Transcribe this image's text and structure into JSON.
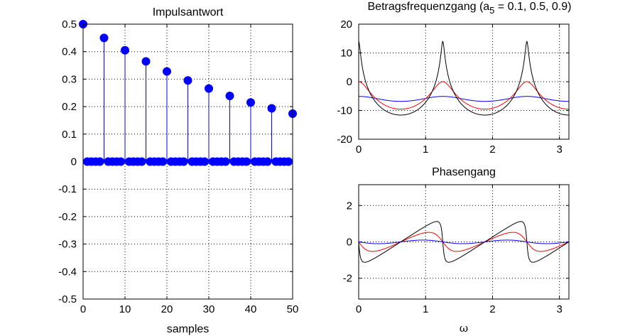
{
  "chart_data": [
    {
      "type": "stem",
      "title": "Impulsantwort",
      "xlabel": "samples",
      "ylabel": "",
      "xlim": [
        0,
        50
      ],
      "ylim": [
        -0.5,
        0.5
      ],
      "xticks": [
        0,
        10,
        20,
        30,
        40,
        50
      ],
      "yticks": [
        -0.5,
        -0.4,
        -0.3,
        -0.2,
        -0.1,
        0,
        0.1,
        0.2,
        0.3,
        0.4,
        0.5
      ],
      "ytick_labels": [
        "-0.5",
        "-0.4",
        "-0.3",
        "-0.2",
        "-0.1",
        "0",
        "0.1",
        "0.2",
        "0.3",
        "0.4",
        "0.5"
      ],
      "grid": true,
      "color": "#0000ff",
      "x": [
        0,
        1,
        2,
        3,
        4,
        5,
        6,
        7,
        8,
        9,
        10,
        11,
        12,
        13,
        14,
        15,
        16,
        17,
        18,
        19,
        20,
        21,
        22,
        23,
        24,
        25,
        26,
        27,
        28,
        29,
        30,
        31,
        32,
        33,
        34,
        35,
        36,
        37,
        38,
        39,
        40,
        41,
        42,
        43,
        44,
        45,
        46,
        47,
        48,
        49,
        50
      ],
      "values": [
        0.5,
        0,
        0,
        0,
        0,
        0.45,
        0,
        0,
        0,
        0,
        0.405,
        0,
        0,
        0,
        0,
        0.3645,
        0,
        0,
        0,
        0,
        0.328,
        0,
        0,
        0,
        0,
        0.2952,
        0,
        0,
        0,
        0,
        0.2657,
        0,
        0,
        0,
        0,
        0.2391,
        0,
        0,
        0,
        0,
        0.2152,
        0,
        0,
        0,
        0,
        0.1937,
        0,
        0,
        0,
        0,
        0.1743
      ]
    },
    {
      "type": "line",
      "title_main": "Betragsfrequenzgang (a",
      "title_sub": "5",
      "title_tail": " = 0.1, 0.5, 0.9)",
      "xlabel": "",
      "ylabel": "",
      "xlim": [
        0,
        3.1416
      ],
      "ylim": [
        -20,
        20
      ],
      "xticks": [
        0,
        1,
        2,
        3
      ],
      "yticks": [
        -20,
        -10,
        0,
        10,
        20
      ],
      "grid": true,
      "formula": "20*log10(0.5/|1 - a*exp(-5jw)|)",
      "series": [
        {
          "a": 0.1,
          "color": "#0000ff"
        },
        {
          "a": 0.5,
          "color": "#ff0000"
        },
        {
          "a": 0.9,
          "color": "#000000"
        }
      ]
    },
    {
      "type": "line",
      "title": "Phasengang",
      "xlabel": "ω",
      "ylabel": "",
      "xlim": [
        0,
        3.1416
      ],
      "ylim": [
        -3.1416,
        3.1416
      ],
      "xticks": [
        0,
        1,
        2,
        3
      ],
      "yticks": [
        -2,
        0,
        2
      ],
      "grid": true,
      "formula": "-atan2(a*sin(5w), 1 - a*cos(5w))",
      "series": [
        {
          "a": 0.1,
          "color": "#0000ff"
        },
        {
          "a": 0.5,
          "color": "#ff0000"
        },
        {
          "a": 0.9,
          "color": "#000000"
        }
      ]
    }
  ]
}
